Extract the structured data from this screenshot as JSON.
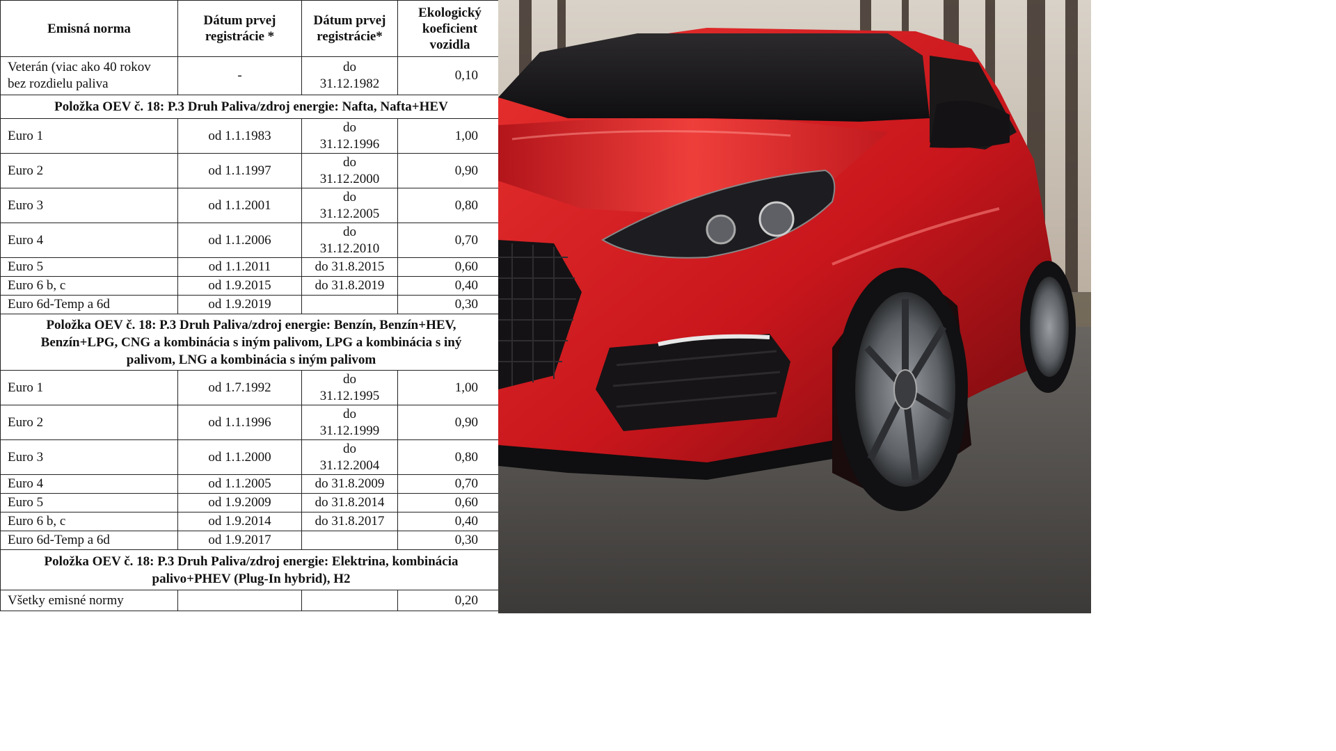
{
  "table": {
    "headers": {
      "emission_norm": "Emisná norma",
      "first_reg_from": "Dátum prvej registrácie *",
      "first_reg_to": "Dátum prvej registrácie*",
      "eco_coefficient": "Ekologický koeficient vozidla"
    },
    "veteran": {
      "norm": "Veterán (viac ako 40 rokov bez rozdielu paliva",
      "from": "-",
      "to": "do 31.12.1982",
      "coef": "0,10"
    },
    "section_diesel": {
      "title": "Položka OEV č. 18: P.3 Druh Paliva/zdroj energie: Nafta, Nafta+HEV",
      "rows": [
        {
          "norm": "Euro 1",
          "from": "od 1.1.1983",
          "to": "do 31.12.1996",
          "coef": "1,00"
        },
        {
          "norm": "Euro 2",
          "from": "od 1.1.1997",
          "to": "do 31.12.2000",
          "coef": "0,90"
        },
        {
          "norm": "Euro 3",
          "from": "od 1.1.2001",
          "to": "do 31.12.2005",
          "coef": "0,80"
        },
        {
          "norm": "Euro 4",
          "from": "od 1.1.2006",
          "to": "do 31.12.2010",
          "coef": "0,70"
        },
        {
          "norm": "Euro 5",
          "from": "od 1.1.2011",
          "to": "do 31.8.2015",
          "coef": "0,60"
        },
        {
          "norm": "Euro 6 b, c",
          "from": "od 1.9.2015",
          "to": "do 31.8.2019",
          "coef": "0,40"
        },
        {
          "norm": "Euro 6d-Temp a 6d",
          "from": "od 1.9.2019",
          "to": "",
          "coef": "0,30"
        }
      ]
    },
    "section_petrol": {
      "title_line1": "Položka OEV č. 18: P.3 Druh Paliva/zdroj energie: Benzín, Benzín+HEV,",
      "title_line2": "Benzín+LPG, CNG a kombinácia s iným palivom, LPG a kombinácia s iný",
      "title_line3": "palivom, LNG a kombinácia s iným palivom",
      "rows": [
        {
          "norm": "Euro 1",
          "from": "od 1.7.1992",
          "to": "do 31.12.1995",
          "coef": "1,00"
        },
        {
          "norm": "Euro 2",
          "from": "od 1.1.1996",
          "to": "do 31.12.1999",
          "coef": "0,90"
        },
        {
          "norm": "Euro 3",
          "from": "od 1.1.2000",
          "to": "do 31.12.2004",
          "coef": "0,80"
        },
        {
          "norm": "Euro 4",
          "from": "od 1.1.2005",
          "to": "do 31.8.2009",
          "coef": "0,70"
        },
        {
          "norm": "Euro 5",
          "from": "od 1.9.2009",
          "to": "do 31.8.2014",
          "coef": "0,60"
        },
        {
          "norm": "Euro 6 b, c",
          "from": "od 1.9.2014",
          "to": "do 31.8.2017",
          "coef": "0,40"
        },
        {
          "norm": "Euro 6d-Temp a 6d",
          "from": "od 1.9.2017",
          "to": "",
          "coef": "0,30"
        }
      ]
    },
    "section_electric": {
      "title_line1": "Položka OEV č. 18: P.3 Druh Paliva/zdroj energie: Elektrina, kombinácia",
      "title_line2": "palivo+PHEV (Plug-In hybrid), H2",
      "rows": [
        {
          "norm": "Všetky emisné normy",
          "from": "",
          "to": "",
          "coef": "0,20"
        }
      ]
    }
  },
  "photo": {
    "subject": "red-hatchback-car",
    "colors": {
      "car_body": "#d41f24",
      "car_shadow": "#7d0d10",
      "road": "#5a5855",
      "sky": "#c9c2b8",
      "trees": "#3a2f28"
    }
  }
}
